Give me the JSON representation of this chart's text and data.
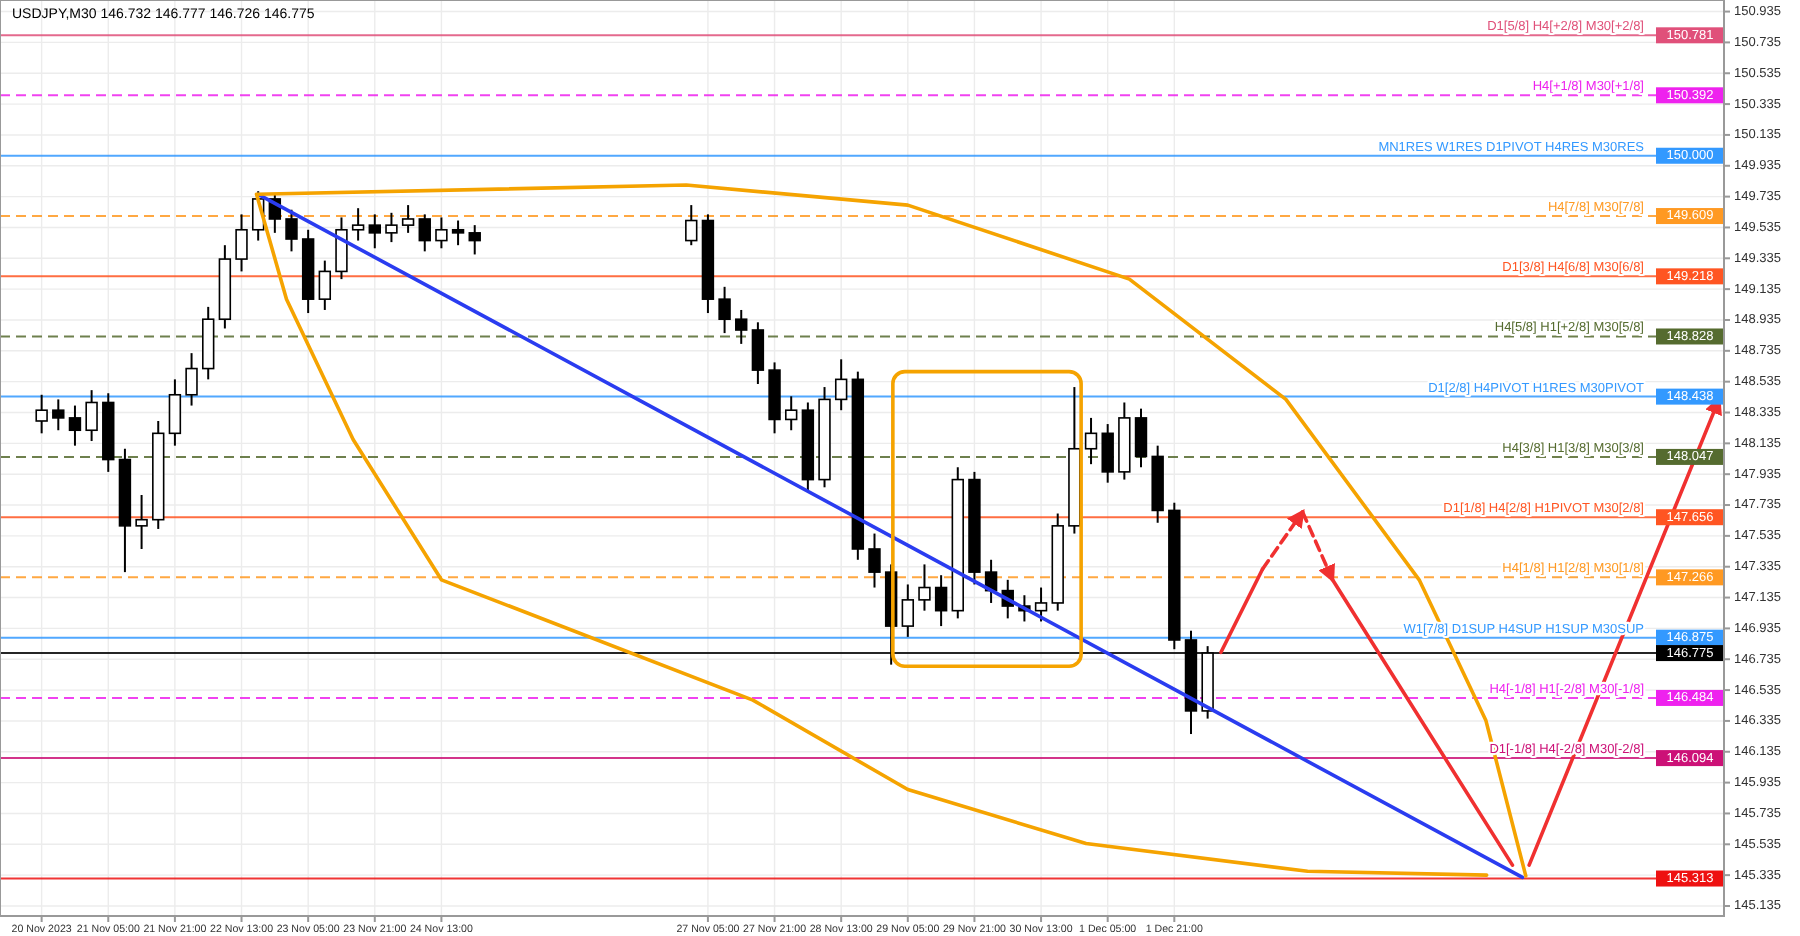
{
  "chart_data": {
    "type": "candlestick",
    "title": "USDJPY,M30  146.732 146.777 146.726 146.775",
    "x": [
      "2023-11-20T13:00",
      "2023-11-20T17:00",
      "2023-11-20T21:00",
      "2023-11-21T01:00",
      "2023-11-21T05:00",
      "2023-11-21T09:00",
      "2023-11-21T13:00",
      "2023-11-21T17:00",
      "2023-11-21T21:00",
      "2023-11-22T01:00",
      "2023-11-22T05:00",
      "2023-11-22T09:00",
      "2023-11-22T13:00",
      "2023-11-22T17:00",
      "2023-11-22T21:00",
      "2023-11-23T01:00",
      "2023-11-23T05:00",
      "2023-11-23T09:00",
      "2023-11-23T13:00",
      "2023-11-23T17:00",
      "2023-11-23T21:00",
      "2023-11-24T01:00",
      "2023-11-24T05:00",
      "2023-11-24T09:00",
      "2023-11-24T13:00",
      "2023-11-24T17:00",
      "2023-11-24T21:00",
      "2023-11-27T01:00",
      "2023-11-27T05:00",
      "2023-11-27T09:00",
      "2023-11-27T13:00",
      "2023-11-27T17:00",
      "2023-11-27T21:00",
      "2023-11-28T01:00",
      "2023-11-28T05:00",
      "2023-11-28T09:00",
      "2023-11-28T13:00",
      "2023-11-28T17:00",
      "2023-11-28T21:00",
      "2023-11-29T01:00",
      "2023-11-29T05:00",
      "2023-11-29T09:00",
      "2023-11-29T13:00",
      "2023-11-29T17:00",
      "2023-11-29T21:00",
      "2023-11-30T01:00",
      "2023-11-30T05:00",
      "2023-11-30T09:00",
      "2023-11-30T13:00",
      "2023-11-30T17:00",
      "2023-11-30T21:00",
      "2023-12-01T01:00",
      "2023-12-01T05:00",
      "2023-12-01T09:00",
      "2023-12-01T13:00",
      "2023-12-01T17:00",
      "2023-12-01T21:00",
      "2023-12-02T01:00",
      "2023-12-02T05:00"
    ],
    "ohlc": [
      [
        148.28,
        148.45,
        148.2,
        148.35
      ],
      [
        148.35,
        148.42,
        148.22,
        148.3
      ],
      [
        148.3,
        148.38,
        148.12,
        148.22
      ],
      [
        148.22,
        148.48,
        148.15,
        148.4
      ],
      [
        148.4,
        148.46,
        147.95,
        148.03
      ],
      [
        148.03,
        148.1,
        147.3,
        147.6
      ],
      [
        147.6,
        147.8,
        147.45,
        147.64
      ],
      [
        147.64,
        148.28,
        147.58,
        148.2
      ],
      [
        148.2,
        148.55,
        148.12,
        148.45
      ],
      [
        148.45,
        148.72,
        148.38,
        148.62
      ],
      [
        148.62,
        149.02,
        148.55,
        148.94
      ],
      [
        148.94,
        149.42,
        148.88,
        149.33
      ],
      [
        149.33,
        149.62,
        149.25,
        149.52
      ],
      [
        149.52,
        149.77,
        149.45,
        149.72
      ],
      [
        149.72,
        149.75,
        149.5,
        149.59
      ],
      [
        149.59,
        149.65,
        149.38,
        149.46
      ],
      [
        149.46,
        149.52,
        148.98,
        149.07
      ],
      [
        149.07,
        149.32,
        149.0,
        149.25
      ],
      [
        149.25,
        149.6,
        149.2,
        149.52
      ],
      [
        149.52,
        149.66,
        149.45,
        149.55
      ],
      [
        149.55,
        149.62,
        149.4,
        149.5
      ],
      [
        149.5,
        149.63,
        149.44,
        149.55
      ],
      [
        149.55,
        149.68,
        149.5,
        149.59
      ],
      [
        149.59,
        149.62,
        149.38,
        149.45
      ],
      [
        149.45,
        149.6,
        149.4,
        149.52
      ],
      [
        149.52,
        149.58,
        149.42,
        149.5
      ],
      [
        149.5,
        149.55,
        149.36,
        149.45
      ],
      [
        149.45,
        149.68,
        149.42,
        149.58
      ],
      [
        149.58,
        149.62,
        148.98,
        149.07
      ],
      [
        149.07,
        149.15,
        148.85,
        148.94
      ],
      [
        148.94,
        149.0,
        148.78,
        148.87
      ],
      [
        148.87,
        148.92,
        148.52,
        148.61
      ],
      [
        148.61,
        148.66,
        148.2,
        148.29
      ],
      [
        148.29,
        148.44,
        148.22,
        148.35
      ],
      [
        148.35,
        148.4,
        147.82,
        147.9
      ],
      [
        147.9,
        148.5,
        147.85,
        148.42
      ],
      [
        148.42,
        148.68,
        148.35,
        148.55
      ],
      [
        148.55,
        148.6,
        147.38,
        147.45
      ],
      [
        147.45,
        147.55,
        147.2,
        147.3
      ],
      [
        147.3,
        147.35,
        146.7,
        146.95
      ],
      [
        146.95,
        147.22,
        146.88,
        147.12
      ],
      [
        147.12,
        147.35,
        147.05,
        147.2
      ],
      [
        147.2,
        147.28,
        146.95,
        147.05
      ],
      [
        147.05,
        147.98,
        147.0,
        147.9
      ],
      [
        147.9,
        147.95,
        147.22,
        147.3
      ],
      [
        147.3,
        147.38,
        147.1,
        147.18
      ],
      [
        147.18,
        147.25,
        147.0,
        147.08
      ],
      [
        147.08,
        147.15,
        146.98,
        147.05
      ],
      [
        147.05,
        147.2,
        146.98,
        147.1
      ],
      [
        147.1,
        147.68,
        147.05,
        147.6
      ],
      [
        147.6,
        148.5,
        147.55,
        148.1
      ],
      [
        148.1,
        148.3,
        148.0,
        148.2
      ],
      [
        148.2,
        148.26,
        147.88,
        147.95
      ],
      [
        147.95,
        148.4,
        147.9,
        148.3
      ],
      [
        148.3,
        148.36,
        147.98,
        148.05
      ],
      [
        148.05,
        148.12,
        147.62,
        147.7
      ],
      [
        147.7,
        147.75,
        146.8,
        146.86
      ],
      [
        146.86,
        146.92,
        146.25,
        146.4
      ],
      [
        146.4,
        146.82,
        146.35,
        146.775
      ]
    ],
    "series": [
      {
        "type": "line",
        "color": "#2a3cf0",
        "x": [
          "2023-11-22T17:00",
          "2023-12-05T08:36"
        ],
        "values": [
          149.75,
          145.32
        ]
      },
      {
        "type": "line",
        "color": "#f5a300",
        "x": [
          "2023-12-05T00:00",
          "2023-12-03T05:00",
          "2023-11-30T23:48",
          "2023-11-29T05:00",
          "2023-11-27T15:48",
          "2023-11-24T13:00",
          "2023-11-23T15:48",
          "2023-11-22T23:48",
          "2023-11-22T16:36",
          "2023-11-26T23:48",
          "2023-11-29T05:00",
          "2023-12-01T10:12",
          "2023-12-02T23:48",
          "2023-12-04T07:48",
          "2023-12-04T23:48",
          "2023-12-05T09:24"
        ],
        "values": [
          145.335,
          145.36,
          145.54,
          145.89,
          146.47,
          147.25,
          148.16,
          149.07,
          149.75,
          149.81,
          149.68,
          149.2,
          148.42,
          147.25,
          146.34,
          145.33
        ]
      },
      {
        "type": "line",
        "color": "#f03030",
        "x": [
          "2023-12-02T08:12",
          "2023-12-02T18:12"
        ],
        "values": [
          146.78,
          147.32
        ]
      },
      {
        "type": "line",
        "color": "#f03030",
        "line_style": "dashed",
        "x": [
          "2023-12-02T18:12",
          "2023-12-03T03:48"
        ],
        "values": [
          147.32,
          147.69
        ]
      },
      {
        "type": "line",
        "color": "#f03030",
        "line_style": "dashed",
        "x": [
          "2023-12-03T03:48",
          "2023-12-03T11:00"
        ],
        "values": [
          147.69,
          147.25
        ]
      },
      {
        "type": "line",
        "color": "#f03030",
        "x": [
          "2023-12-03T11:00",
          "2023-12-05T06:12"
        ],
        "values": [
          147.25,
          145.4
        ]
      },
      {
        "type": "line",
        "color": "#f03030",
        "x": [
          "2023-12-05T10:12",
          "2023-12-07T07:48"
        ],
        "values": [
          145.4,
          148.42
        ]
      }
    ],
    "xlim": [
      "2023-11-20T03:00",
      "2023-12-07T09:00"
    ],
    "xticks": [
      {
        "value": "2023-11-20T13:00",
        "label": "20 Nov 2023"
      },
      {
        "value": "2023-11-21T05:00",
        "label": "21 Nov 05:00"
      },
      {
        "value": "2023-11-21T21:00",
        "label": "21 Nov 21:00"
      },
      {
        "value": "2023-11-22T13:00",
        "label": "22 Nov 13:00"
      },
      {
        "value": "2023-11-23T05:00",
        "label": "23 Nov 05:00"
      },
      {
        "value": "2023-11-23T21:00",
        "label": "23 Nov 21:00"
      },
      {
        "value": "2023-11-24T13:00",
        "label": "24 Nov 13:00"
      },
      {
        "value": "2023-11-27T05:00",
        "label": "27 Nov 05:00"
      },
      {
        "value": "2023-11-27T21:00",
        "label": "27 Nov 21:00"
      },
      {
        "value": "2023-11-28T13:00",
        "label": "28 Nov 13:00"
      },
      {
        "value": "2023-11-29T05:00",
        "label": "29 Nov 05:00"
      },
      {
        "value": "2023-11-29T21:00",
        "label": "29 Nov 21:00"
      },
      {
        "value": "2023-11-30T13:00",
        "label": "30 Nov 13:00"
      },
      {
        "value": "2023-12-01T05:00",
        "label": "1 Dec 05:00"
      },
      {
        "value": "2023-12-01T21:00",
        "label": "1 Dec 21:00"
      }
    ],
    "ylim": [
      145.07,
      151.01
    ],
    "yticks": [
      145.135,
      145.335,
      145.535,
      145.735,
      145.935,
      146.135,
      146.335,
      146.535,
      146.735,
      146.935,
      147.135,
      147.335,
      147.535,
      147.735,
      147.935,
      148.135,
      148.335,
      148.535,
      148.735,
      148.935,
      149.135,
      149.335,
      149.535,
      149.735,
      149.935,
      150.135,
      150.335,
      150.535,
      150.735,
      150.935
    ],
    "grid": true,
    "ref_lines": [
      {
        "axis": "y",
        "value": 150.781,
        "label": "D1[5/8] H4[+2/8] M30[+2/8]",
        "color": "#e0507a",
        "line_style": "solid"
      },
      {
        "axis": "y",
        "value": 150.392,
        "label": "H4[+1/8] M30[+1/8]",
        "color": "#ee22ee",
        "line_style": "dashed"
      },
      {
        "axis": "y",
        "value": 150.0,
        "label": "MN1RES W1RES D1PIVOT H4RES M30RES",
        "color": "#3399ff",
        "line_style": "solid"
      },
      {
        "axis": "y",
        "value": 149.609,
        "label": "H4[7/8] M30[7/8]",
        "color": "#ff9922",
        "line_style": "dashed"
      },
      {
        "axis": "y",
        "value": 149.218,
        "label": "D1[3/8] H4[6/8] M30[6/8]",
        "color": "#ff5522",
        "line_style": "solid"
      },
      {
        "axis": "y",
        "value": 148.828,
        "label": "H4[5/8] H1[+2/8] M30[5/8]",
        "color": "#556b2f",
        "line_style": "dashed"
      },
      {
        "axis": "y",
        "value": 148.438,
        "label": "D1[2/8] H4PIVOT H1RES M30PIVOT",
        "color": "#3399ff",
        "line_style": "solid"
      },
      {
        "axis": "y",
        "value": 148.047,
        "label": "H4[3/8] H1[3/8] M30[3/8]",
        "color": "#556b2f",
        "line_style": "dashed"
      },
      {
        "axis": "y",
        "value": 147.656,
        "label": "D1[1/8] H4[2/8] H1PIVOT M30[2/8]",
        "color": "#ff5522",
        "line_style": "solid"
      },
      {
        "axis": "y",
        "value": 147.266,
        "label": "H4[1/8] H1[2/8] M30[1/8]",
        "color": "#ff9922",
        "line_style": "dashed"
      },
      {
        "axis": "y",
        "value": 146.875,
        "label": "W1[7/8] D1SUP H4SUP H1SUP M30SUP",
        "color": "#3399ff",
        "line_style": "solid"
      },
      {
        "axis": "y",
        "value": 146.775,
        "color": "#000000",
        "line_style": "solid"
      },
      {
        "axis": "y",
        "value": 146.484,
        "label": "H4[-1/8] H1[-2/8] M30[-1/8]",
        "color": "#ee22ee",
        "line_style": "dashed"
      },
      {
        "axis": "y",
        "value": 146.094,
        "label": "D1[-1/8] H4[-2/8] M30[-2/8]",
        "color": "#cc1177",
        "line_style": "solid"
      },
      {
        "axis": "y",
        "value": 145.313,
        "color": "#ee1111",
        "line_style": "solid"
      }
    ],
    "annotations": [
      {
        "text": "150.781",
        "y": 150.781
      },
      {
        "text": "150.392",
        "y": 150.392
      },
      {
        "text": "150.000",
        "y": 150.0
      },
      {
        "text": "149.609",
        "y": 149.609
      },
      {
        "text": "149.218",
        "y": 149.218
      },
      {
        "text": "148.828",
        "y": 148.828
      },
      {
        "text": "148.438",
        "y": 148.438
      },
      {
        "text": "148.047",
        "y": 148.047
      },
      {
        "text": "147.656",
        "y": 147.656
      },
      {
        "text": "147.266",
        "y": 147.266
      },
      {
        "text": "146.875",
        "y": 146.875
      },
      {
        "text": "146.775",
        "y": 146.775
      },
      {
        "text": "146.484",
        "y": 146.484
      },
      {
        "text": "146.094",
        "y": 146.094
      },
      {
        "text": "145.313",
        "y": 145.313
      }
    ]
  }
}
